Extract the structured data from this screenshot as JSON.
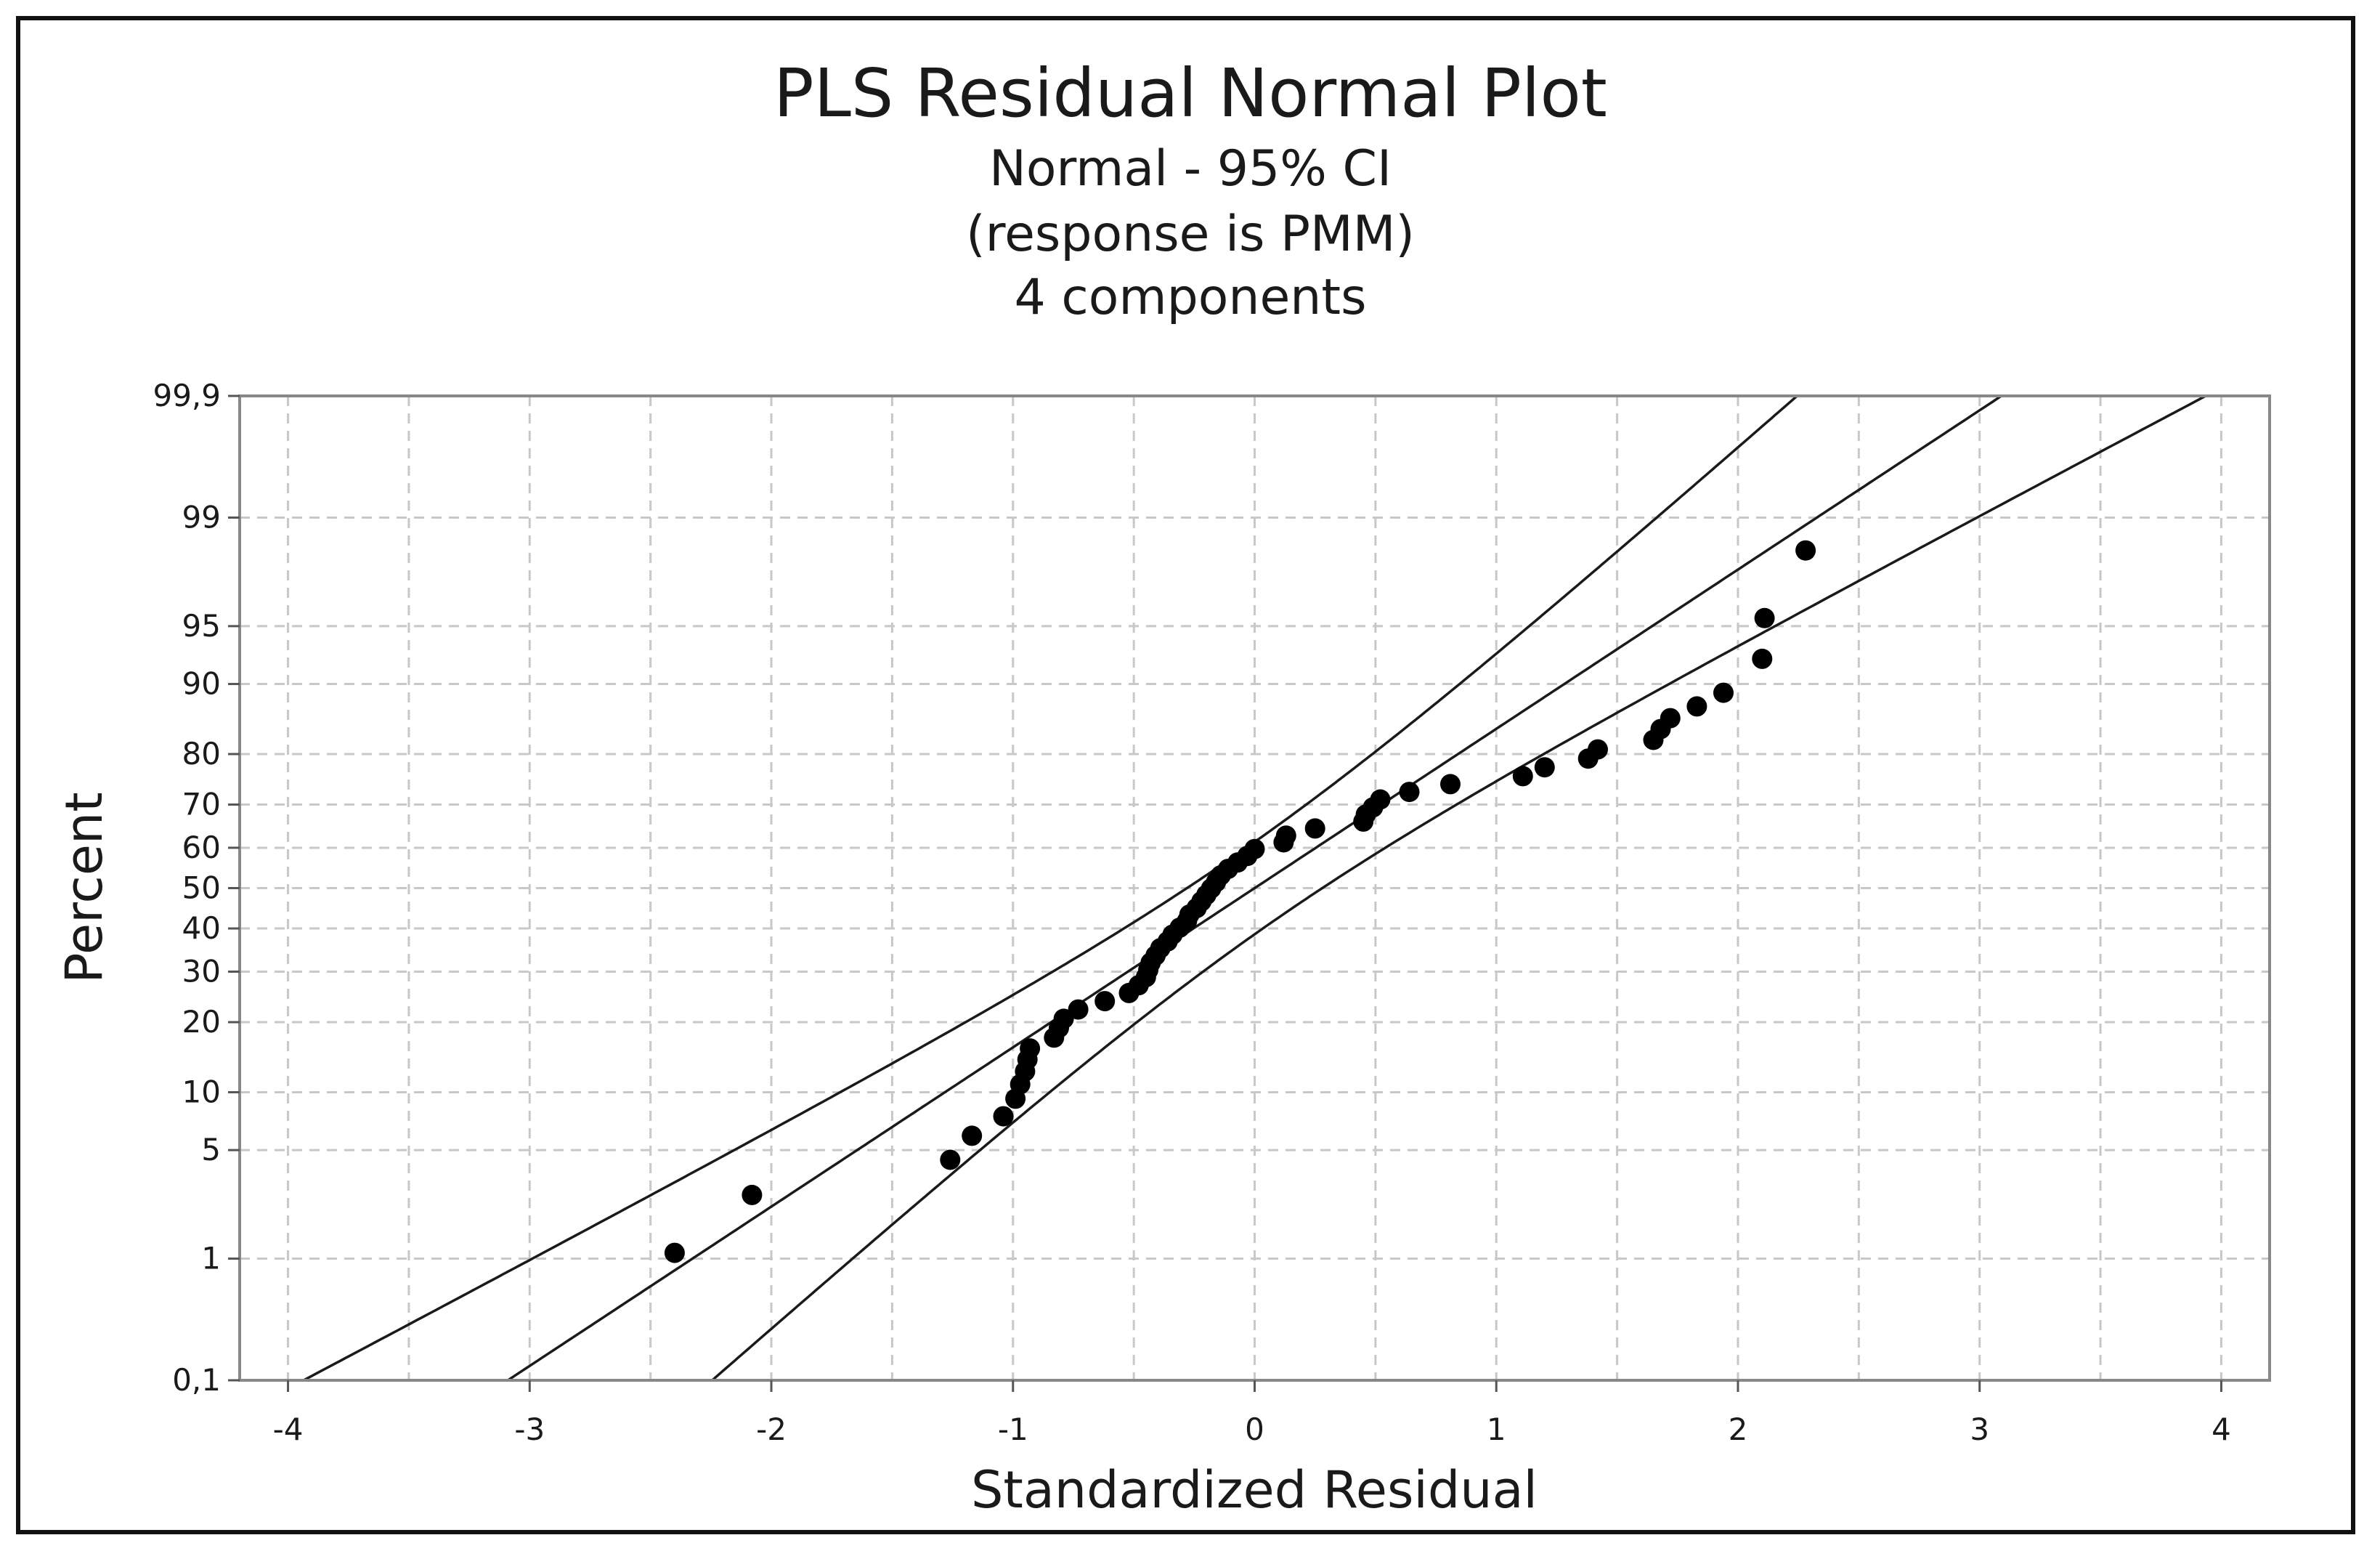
{
  "chart_data": {
    "type": "scatter",
    "title": "PLS Residual Normal Plot",
    "subtitles": [
      "Normal - 95% CI",
      "(response is PMM)",
      "4 components"
    ],
    "xlabel": "Standardized Residual",
    "ylabel": "Percent",
    "xlim": [
      -4.2,
      4.2
    ],
    "x_ticks": [
      -4,
      -3,
      -2,
      -1,
      0,
      1,
      2,
      3,
      4
    ],
    "x_tick_labels": [
      "-4",
      "-3",
      "-2",
      "-1",
      "0",
      "1",
      "2",
      "3",
      "4"
    ],
    "y_scale": "normal-probability",
    "ylim": [
      0.1,
      99.9
    ],
    "y_ticks": [
      0.1,
      1,
      5,
      10,
      20,
      30,
      40,
      50,
      60,
      70,
      80,
      90,
      95,
      99,
      99.9
    ],
    "y_tick_labels": [
      "0,1",
      "1",
      "5",
      "10",
      "20",
      "30",
      "40",
      "50",
      "60",
      "70",
      "80",
      "90",
      "95",
      "99",
      "99,9"
    ],
    "grid": true,
    "fit_line": {
      "mean": 0,
      "stdev": 1,
      "ci": 0.95
    },
    "points": [
      [
        -2.4,
        1.1
      ],
      [
        -2.08,
        2.7
      ],
      [
        -1.26,
        4.4
      ],
      [
        -1.17,
        6.0
      ],
      [
        -1.04,
        7.6
      ],
      [
        -0.99,
        9.3
      ],
      [
        -0.97,
        10.9
      ],
      [
        -0.95,
        12.5
      ],
      [
        -0.94,
        14.1
      ],
      [
        -0.93,
        15.7
      ],
      [
        -0.83,
        17.4
      ],
      [
        -0.81,
        19.0
      ],
      [
        -0.79,
        20.6
      ],
      [
        -0.73,
        22.3
      ],
      [
        -0.62,
        23.9
      ],
      [
        -0.52,
        25.5
      ],
      [
        -0.48,
        27.1
      ],
      [
        -0.45,
        28.8
      ],
      [
        -0.44,
        30.4
      ],
      [
        -0.43,
        32.0
      ],
      [
        -0.41,
        33.6
      ],
      [
        -0.39,
        35.3
      ],
      [
        -0.36,
        36.9
      ],
      [
        -0.34,
        38.5
      ],
      [
        -0.31,
        40.2
      ],
      [
        -0.28,
        41.8
      ],
      [
        -0.27,
        43.4
      ],
      [
        -0.24,
        45.0
      ],
      [
        -0.22,
        46.7
      ],
      [
        -0.2,
        48.3
      ],
      [
        -0.18,
        49.9
      ],
      [
        -0.16,
        51.5
      ],
      [
        -0.14,
        53.2
      ],
      [
        -0.11,
        54.8
      ],
      [
        -0.07,
        56.4
      ],
      [
        -0.03,
        58.0
      ],
      [
        0.0,
        59.7
      ],
      [
        0.12,
        61.3
      ],
      [
        0.13,
        62.9
      ],
      [
        0.25,
        64.6
      ],
      [
        0.45,
        66.2
      ],
      [
        0.46,
        67.8
      ],
      [
        0.49,
        69.4
      ],
      [
        0.52,
        71.1
      ],
      [
        0.64,
        72.7
      ],
      [
        0.81,
        74.3
      ],
      [
        1.11,
        75.9
      ],
      [
        1.2,
        77.6
      ],
      [
        1.38,
        79.2
      ],
      [
        1.42,
        80.8
      ],
      [
        1.65,
        82.4
      ],
      [
        1.68,
        84.1
      ],
      [
        1.72,
        85.7
      ],
      [
        1.83,
        87.3
      ],
      [
        1.94,
        89.0
      ],
      [
        2.1,
        92.5
      ],
      [
        2.11,
        95.5
      ],
      [
        2.28,
        98.3
      ]
    ],
    "colors": {
      "points": "#000000",
      "lines": "#1a1a1a",
      "grid": "#c8c8c8",
      "frame": "#888888"
    }
  }
}
